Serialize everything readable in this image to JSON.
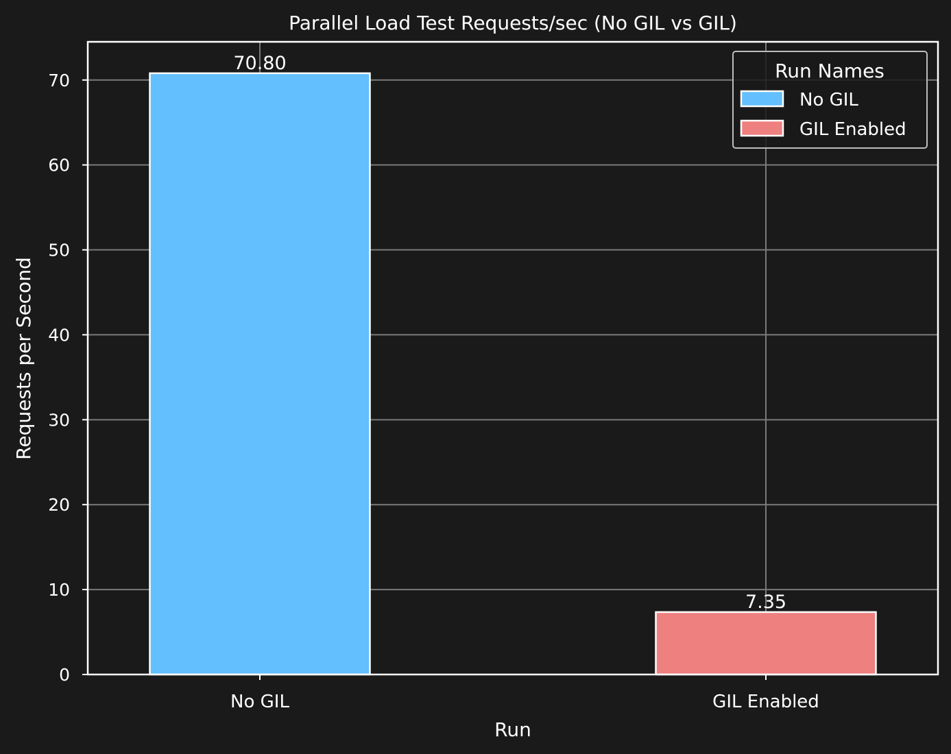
{
  "chart_data": {
    "type": "bar",
    "title": "Parallel Load Test Requests/sec (No GIL vs GIL)",
    "xlabel": "Run",
    "ylabel": "Requests per Second",
    "categories": [
      "No GIL",
      "GIL Enabled"
    ],
    "values": [
      70.8,
      7.35
    ],
    "value_labels": [
      "70.80",
      "7.35"
    ],
    "colors": [
      "#63bffd",
      "#ef8080"
    ],
    "ylim": [
      0,
      74.5
    ],
    "yticks": [
      0,
      10,
      20,
      30,
      40,
      50,
      60,
      70
    ],
    "grid": true,
    "legend": {
      "title": "Run Names",
      "placement": "top-right",
      "entries": [
        "No GIL",
        "GIL Enabled"
      ]
    }
  },
  "colors": {
    "background": "#1a1a1a",
    "grid": "#7a7a7a",
    "text": "#ffffff",
    "axes": "#ffffff"
  }
}
